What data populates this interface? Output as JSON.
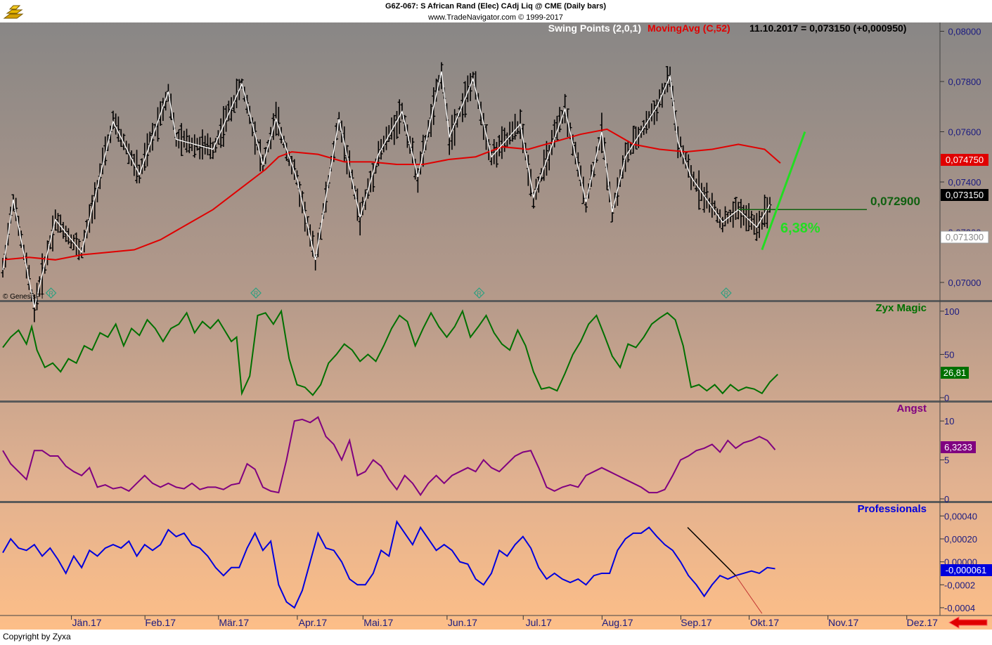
{
  "header": {
    "instrument": "G6Z-067:  S African Rand (Elec) CAdj Liq @ CME  (Daily bars)",
    "site": "www.TradeNavigator.com © 1999-2017"
  },
  "legend": {
    "swing": "Swing Points (2,0,1)",
    "ma": "MovingAvg (C,52)",
    "quote": "11.10.2017 = 0,073150 (+0,000950)"
  },
  "badges": {
    "ma_last": "0,074750",
    "close_last": "0,073150",
    "low_mark": "0,071300",
    "level_line": "0,072900",
    "pct_gain": "6,38%"
  },
  "footer": {
    "genesis": "© GenesisFT",
    "copyright": "Copyright by Zyxa"
  },
  "icons": {
    "logo": "gold-bars-logo-icon",
    "rollover_marker": "rollover-r-icon",
    "scroll_arrow": "red-arrow-left-icon"
  },
  "colors": {
    "price_bars": "#000000",
    "swing_line": "#ffffff",
    "moving_avg": "#e00000",
    "target_line": "#22dd22",
    "level_line": "#106010",
    "zyx": "#007000",
    "angst": "#800080",
    "professionals": "#0000dd"
  },
  "chart_data": [
    {
      "type": "bar",
      "name": "price",
      "ylim": [
        0.0693,
        0.08035
      ],
      "yticks": [
        "0,08000",
        "0,07800",
        "0,07600",
        "0,07400",
        "0,07200",
        "0,07000"
      ],
      "ytick_values": [
        0.08,
        0.078,
        0.076,
        0.074,
        0.072,
        0.07
      ],
      "x_range": [
        0,
        296
      ],
      "x_month_labels": [
        "Jän.17",
        "Feb.17",
        "Mär.17",
        "Apr.17",
        "Mai.17",
        "Jun.17",
        "Jul.17",
        "Aug.17",
        "Sep.17",
        "Okt.17",
        "Nov.17",
        "Dez.17"
      ],
      "x_month_positions": [
        32,
        60,
        88,
        118,
        143,
        175,
        204,
        234,
        264,
        290,
        320,
        350
      ],
      "swing_points": {
        "x": [
          0,
          4,
          12,
          20,
          30,
          42,
          52,
          63,
          66,
          80,
          91,
          99,
          104,
          112,
          119,
          128,
          136,
          143,
          152,
          158,
          167,
          170,
          179,
          186,
          197,
          202,
          214,
          222,
          228,
          232,
          237,
          249,
          254,
          257,
          262,
          274,
          280,
          287,
          292
        ],
        "y": [
          0.0705,
          0.0733,
          0.069,
          0.0725,
          0.0712,
          0.0764,
          0.0743,
          0.0776,
          0.0757,
          0.0753,
          0.0779,
          0.0747,
          0.0765,
          0.0741,
          0.0709,
          0.0765,
          0.0726,
          0.0751,
          0.0768,
          0.0742,
          0.0784,
          0.0758,
          0.0781,
          0.075,
          0.0763,
          0.0734,
          0.0769,
          0.0732,
          0.076,
          0.0728,
          0.075,
          0.077,
          0.0782,
          0.0756,
          0.0742,
          0.0724,
          0.0729,
          0.0722,
          0.0731
        ]
      },
      "moving_average": {
        "x": [
          0,
          10,
          20,
          30,
          40,
          50,
          60,
          70,
          80,
          90,
          100,
          105,
          110,
          120,
          130,
          140,
          150,
          160,
          170,
          180,
          190,
          200,
          210,
          220,
          230,
          240,
          250,
          260,
          270,
          280,
          290,
          296
        ],
        "y": [
          0.0709,
          0.071,
          0.0709,
          0.0711,
          0.0712,
          0.0713,
          0.0717,
          0.0723,
          0.0729,
          0.0737,
          0.0745,
          0.075,
          0.0752,
          0.0751,
          0.0748,
          0.0748,
          0.0747,
          0.0747,
          0.0749,
          0.075,
          0.0754,
          0.0753,
          0.0756,
          0.0759,
          0.0761,
          0.0755,
          0.0753,
          0.0752,
          0.0753,
          0.0755,
          0.0753,
          0.07475
        ]
      },
      "level_line": {
        "y": 0.0729,
        "x_from": 280,
        "x_to": 320
      },
      "target_line": {
        "x": [
          289,
          300
        ],
        "y": [
          0.0713,
          0.076
        ]
      },
      "rollover_markers_x": [
        13,
        91,
        176,
        270
      ],
      "last_close": 0.07315
    },
    {
      "type": "line",
      "name": "Zyx Magic",
      "ylim": [
        0,
        108
      ],
      "yticks": [
        "100",
        "50",
        "0"
      ],
      "ytick_values": [
        100,
        50,
        0
      ],
      "x": [
        0,
        3,
        6,
        9,
        11,
        13,
        16,
        19,
        22,
        25,
        28,
        31,
        34,
        37,
        40,
        43,
        46,
        49,
        52,
        55,
        58,
        61,
        64,
        67,
        70,
        73,
        76,
        79,
        82,
        85,
        87,
        89,
        91,
        94,
        97,
        100,
        103,
        106,
        109,
        112,
        115,
        118,
        121,
        124,
        127,
        130,
        133,
        136,
        139,
        142,
        145,
        148,
        151,
        154,
        157,
        160,
        163,
        166,
        169,
        172,
        175,
        178,
        181,
        184,
        187,
        190,
        193,
        196,
        199,
        202,
        205,
        208,
        211,
        214,
        217,
        220,
        223,
        226,
        229,
        232,
        235,
        238,
        241,
        244,
        247,
        250,
        253,
        256,
        259,
        262,
        265,
        268,
        271,
        274,
        277,
        280,
        283,
        286,
        289,
        292,
        295
      ],
      "y": [
        58,
        70,
        78,
        62,
        82,
        55,
        35,
        40,
        30,
        45,
        40,
        60,
        55,
        75,
        70,
        85,
        60,
        80,
        72,
        90,
        80,
        65,
        80,
        85,
        98,
        75,
        88,
        80,
        90,
        75,
        65,
        70,
        5,
        25,
        95,
        98,
        85,
        100,
        45,
        15,
        12,
        3,
        15,
        40,
        50,
        62,
        55,
        42,
        50,
        42,
        60,
        80,
        95,
        88,
        60,
        80,
        98,
        82,
        70,
        82,
        100,
        70,
        82,
        95,
        75,
        62,
        55,
        78,
        60,
        30,
        10,
        12,
        8,
        28,
        50,
        65,
        85,
        95,
        72,
        48,
        35,
        62,
        58,
        70,
        85,
        92,
        98,
        90,
        60,
        12,
        15,
        8,
        15,
        5,
        15,
        8,
        12,
        10,
        5,
        18,
        27
      ]
    },
    {
      "type": "line",
      "name": "Angst",
      "ylim": [
        0,
        12
      ],
      "yticks": [
        "10",
        "5",
        "0"
      ],
      "ytick_values": [
        10,
        5,
        0
      ],
      "x": [
        0,
        3,
        6,
        9,
        12,
        15,
        18,
        21,
        24,
        27,
        30,
        33,
        36,
        39,
        42,
        45,
        48,
        51,
        54,
        57,
        60,
        63,
        66,
        69,
        72,
        75,
        78,
        81,
        84,
        87,
        90,
        93,
        96,
        99,
        102,
        105,
        108,
        111,
        114,
        117,
        120,
        123,
        126,
        129,
        132,
        135,
        138,
        141,
        144,
        147,
        150,
        153,
        156,
        159,
        162,
        165,
        168,
        171,
        174,
        177,
        180,
        183,
        186,
        189,
        192,
        195,
        198,
        201,
        204,
        207,
        210,
        213,
        216,
        219,
        222,
        225,
        228,
        231,
        234,
        237,
        240,
        243,
        246,
        249,
        252,
        255,
        258,
        261,
        264,
        267,
        270,
        273,
        276,
        279,
        282,
        285,
        288,
        291,
        294
      ],
      "y": [
        6.2,
        4.5,
        3.5,
        2.5,
        6.2,
        6.2,
        5.5,
        5.5,
        4.2,
        3.5,
        3.0,
        4.0,
        1.5,
        1.8,
        1.3,
        1.5,
        1.0,
        2.0,
        3.0,
        2.0,
        1.5,
        2.0,
        1.5,
        1.3,
        2.0,
        1.2,
        1.5,
        1.5,
        1.2,
        1.8,
        2.0,
        4.5,
        3.8,
        1.5,
        1.0,
        0.8,
        5.0,
        10.0,
        10.2,
        9.8,
        10.5,
        8.0,
        7.0,
        5.0,
        7.5,
        3.0,
        3.5,
        5.0,
        4.2,
        2.5,
        1.2,
        3.0,
        2.0,
        0.5,
        2.0,
        3.0,
        2.0,
        3.0,
        3.5,
        4.0,
        3.5,
        5.0,
        4.0,
        3.5,
        4.5,
        5.5,
        6.0,
        6.2,
        4.0,
        1.5,
        1.0,
        1.5,
        1.8,
        1.5,
        3.0,
        3.5,
        4.0,
        3.5,
        3.0,
        2.5,
        2.0,
        1.5,
        0.8,
        0.8,
        1.2,
        3.0,
        5.0,
        5.5,
        6.2,
        6.5,
        7.0,
        6.0,
        7.5,
        6.5,
        7.2,
        7.5,
        8.0,
        7.5,
        6.3
      ]
    },
    {
      "type": "line",
      "name": "Professionals",
      "ylim": [
        -0.00048,
        0.0005
      ],
      "yticks": [
        "0,00040",
        "0,00020",
        "0,00000",
        "-0,0002",
        "-0,0004"
      ],
      "ytick_values": [
        0.0004,
        0.0002,
        0.0,
        -0.0002,
        -0.0004
      ],
      "x": [
        0,
        3,
        6,
        9,
        12,
        15,
        18,
        21,
        24,
        27,
        30,
        33,
        36,
        39,
        42,
        45,
        48,
        51,
        54,
        57,
        60,
        63,
        66,
        69,
        72,
        75,
        78,
        81,
        84,
        87,
        90,
        93,
        96,
        99,
        102,
        105,
        108,
        111,
        114,
        117,
        120,
        123,
        126,
        129,
        132,
        135,
        138,
        141,
        144,
        147,
        150,
        153,
        156,
        159,
        162,
        165,
        168,
        171,
        174,
        177,
        180,
        183,
        186,
        189,
        192,
        195,
        198,
        201,
        204,
        207,
        210,
        213,
        216,
        219,
        222,
        225,
        228,
        231,
        234,
        237,
        240,
        243,
        246,
        249,
        252,
        255,
        258,
        261,
        264,
        267,
        270,
        273,
        276,
        279,
        282,
        285,
        288,
        291,
        294
      ],
      "y": [
        8e-05,
        0.0002,
        0.00012,
        0.0001,
        0.00015,
        5e-05,
        0.00012,
        2e-05,
        -0.0001,
        5e-05,
        -5e-05,
        0.0001,
        5e-05,
        0.00012,
        0.00015,
        0.00012,
        0.00018,
        5e-05,
        0.00015,
        0.0001,
        0.00015,
        0.00028,
        0.00022,
        0.00025,
        0.00015,
        0.00012,
        5e-05,
        -5e-05,
        -0.00012,
        -5e-05,
        -5e-05,
        0.00012,
        0.00025,
        0.0001,
        0.00018,
        -0.0002,
        -0.00035,
        -0.0004,
        -0.00025,
        0.0,
        0.00025,
        0.00012,
        0.0001,
        0.0,
        -0.00015,
        -0.0002,
        -0.0002,
        -0.0001,
        0.0001,
        5e-05,
        0.00035,
        0.00025,
        0.00015,
        0.0003,
        0.0002,
        0.0001,
        0.00015,
        0.0001,
        0.0,
        -2e-05,
        -0.00015,
        -0.0002,
        -0.0001,
        0.0001,
        5e-05,
        0.00015,
        0.00022,
        0.00012,
        -5e-05,
        -0.00015,
        -0.0001,
        -0.00015,
        -0.00018,
        -0.00015,
        -0.0002,
        -0.00012,
        -0.0001,
        -0.0001,
        0.0001,
        0.0002,
        0.00025,
        0.00025,
        0.0003,
        0.00022,
        0.00015,
        0.0001,
        0.0,
        -0.00012,
        -0.0002,
        -0.0003,
        -0.0002,
        -0.00012,
        -0.00015,
        -0.00012,
        -0.0001,
        -8e-05,
        -0.0001,
        -5e-05,
        -6e-05
      ]
    }
  ],
  "panel_labels": {
    "zyx": {
      "name": "Zyx Magic",
      "last": "26,81"
    },
    "angst": {
      "name": "Angst",
      "last": "6,3233"
    },
    "professionals": {
      "name": "Professionals",
      "last": "-0,000061"
    }
  }
}
